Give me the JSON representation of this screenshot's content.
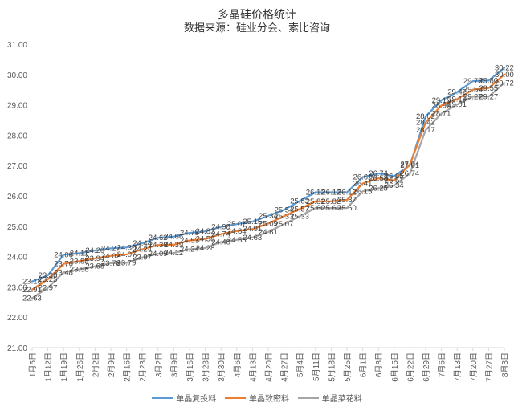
{
  "header": {
    "title": "多晶硅价格统计",
    "subtitle": "数据来源：硅业分会、索比咨询"
  },
  "chart_data": {
    "type": "line",
    "title": "多晶硅价格统计",
    "subtitle": "数据来源：硅业分会、索比咨询",
    "xlabel": "",
    "ylabel": "",
    "ylim": [
      21,
      31
    ],
    "yticks": [
      "21.00",
      "22.00",
      "23.00",
      "24.00",
      "25.00",
      "26.00",
      "27.00",
      "28.00",
      "29.00",
      "30.00",
      "31.00"
    ],
    "grid": false,
    "legend_position": "bottom",
    "categories": [
      "1月5日",
      "1月12日",
      "1月19日",
      "1月26日",
      "2月2日",
      "2月9日",
      "2月16日",
      "2月23日",
      "3月2日",
      "3月9日",
      "3月16日",
      "3月23日",
      "3月30日",
      "4月6日",
      "4月13日",
      "4月20日",
      "4月27日",
      "5月4日",
      "5月11日",
      "5月18日",
      "5月25日",
      "6月1日",
      "6月8日",
      "6月15日",
      "6月22日",
      "6月29日",
      "7月6日",
      "7月13日",
      "7月20日",
      "7月27日",
      "8月3日"
    ],
    "series": [
      {
        "name": "单晶复投料",
        "color": "#5B9BD5",
        "values": [
          23.18,
          23.38,
          24.06,
          24.11,
          24.2,
          24.27,
          24.3,
          24.44,
          24.62,
          24.66,
          24.78,
          24.83,
          24.98,
          25.07,
          25.15,
          25.34,
          25.54,
          25.83,
          26.12,
          26.12,
          26.12,
          26.62,
          26.74,
          26.65,
          27.01,
          28.62,
          29.15,
          29.42,
          29.78,
          29.8,
          30.22
        ]
      },
      {
        "name": "单晶致密料",
        "color": "#ED7D31",
        "values": [
          22.91,
          23.25,
          23.76,
          23.85,
          23.94,
          24.02,
          24.07,
          24.24,
          24.38,
          24.39,
          24.53,
          24.58,
          24.74,
          24.84,
          24.91,
          25.09,
          25.33,
          25.57,
          25.82,
          25.82,
          25.87,
          26.41,
          26.58,
          26.51,
          27.04,
          28.42,
          28.98,
          29.19,
          29.5,
          29.55,
          30.0
        ]
      },
      {
        "name": "单晶菜花料",
        "color": "#A5A5A5",
        "values": [
          22.63,
          22.97,
          23.48,
          23.58,
          23.68,
          23.78,
          23.79,
          23.97,
          24.09,
          24.12,
          24.24,
          24.28,
          24.48,
          24.55,
          24.63,
          24.81,
          25.07,
          25.33,
          25.6,
          25.6,
          25.6,
          26.15,
          26.25,
          26.34,
          26.74,
          28.17,
          28.71,
          29.01,
          29.27,
          29.27,
          29.72
        ]
      }
    ]
  },
  "legend": {
    "items": [
      {
        "label": "单晶复投料",
        "color": "#5B9BD5"
      },
      {
        "label": "单晶致密料",
        "color": "#ED7D31"
      },
      {
        "label": "单晶菜花料",
        "color": "#A5A5A5"
      }
    ]
  }
}
